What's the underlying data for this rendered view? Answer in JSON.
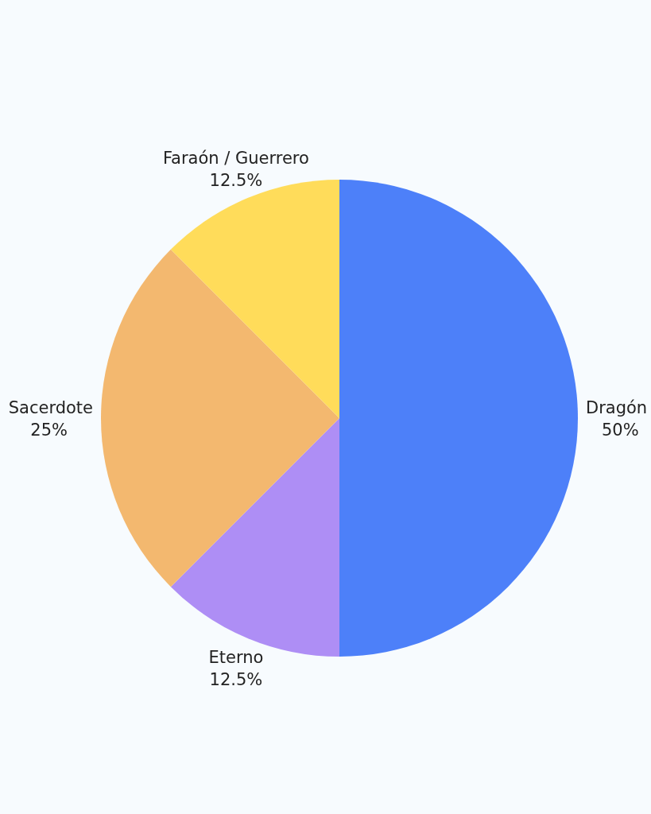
{
  "chart_data": {
    "type": "pie",
    "categories": [
      "Dragón",
      "Eterno",
      "Sacerdote",
      "Faraón / Guerrero"
    ],
    "values": [
      50,
      12.5,
      25,
      12.5
    ],
    "colors": [
      "#4d80f9",
      "#ae8ef5",
      "#f3b86f",
      "#ffdc5a"
    ],
    "value_labels": [
      "50%",
      "12.5%",
      "25%",
      "12.5%"
    ]
  }
}
